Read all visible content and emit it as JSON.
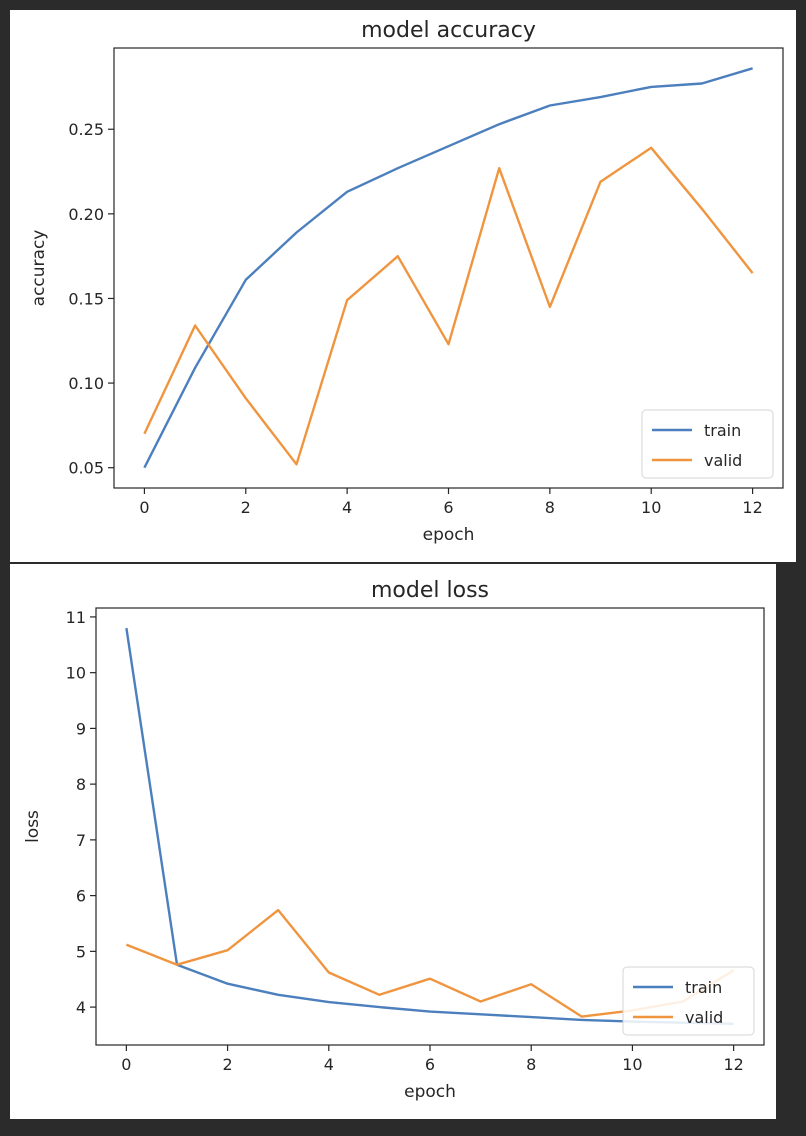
{
  "colors": {
    "train": "#4c7fbd",
    "valid": "#f0953f",
    "axis": "#262626",
    "background": "#2b2b2b"
  },
  "chart_data": [
    {
      "type": "line",
      "title": "model accuracy",
      "xlabel": "epoch",
      "ylabel": "accuracy",
      "x": [
        0,
        1,
        2,
        3,
        4,
        5,
        6,
        7,
        8,
        9,
        10,
        11,
        12
      ],
      "xlim": [
        -0.6,
        12.6
      ],
      "ylim": [
        0.038,
        0.298
      ],
      "xticks": [
        0,
        2,
        4,
        6,
        8,
        10,
        12
      ],
      "yticks": [
        0.05,
        0.1,
        0.15,
        0.2,
        0.25
      ],
      "ytick_labels": [
        "0.05",
        "0.10",
        "0.15",
        "0.20",
        "0.25"
      ],
      "legend": "lower right",
      "grid": false,
      "series": [
        {
          "name": "train",
          "color": "#4c7fbd",
          "values": [
            0.05,
            0.109,
            0.161,
            0.189,
            0.213,
            0.227,
            0.24,
            0.253,
            0.264,
            0.269,
            0.275,
            0.277,
            0.286
          ]
        },
        {
          "name": "valid",
          "color": "#f0953f",
          "values": [
            0.07,
            0.134,
            0.091,
            0.052,
            0.149,
            0.175,
            0.123,
            0.227,
            0.145,
            0.219,
            0.239,
            0.203,
            0.165
          ]
        }
      ]
    },
    {
      "type": "line",
      "title": "model loss",
      "xlabel": "epoch",
      "ylabel": "loss",
      "x": [
        0,
        1,
        2,
        3,
        4,
        5,
        6,
        7,
        8,
        9,
        10,
        11,
        12
      ],
      "xlim": [
        -0.6,
        12.6
      ],
      "ylim": [
        3.32,
        11.16
      ],
      "xticks": [
        0,
        2,
        4,
        6,
        8,
        10,
        12
      ],
      "yticks": [
        4,
        5,
        6,
        7,
        8,
        9,
        10,
        11
      ],
      "ytick_labels": [
        "4",
        "5",
        "6",
        "7",
        "8",
        "9",
        "10",
        "11"
      ],
      "legend": "lower right",
      "grid": false,
      "series": [
        {
          "name": "train",
          "color": "#4c7fbd",
          "values": [
            10.8,
            4.76,
            4.42,
            4.22,
            4.09,
            4.0,
            3.92,
            3.87,
            3.82,
            3.77,
            3.74,
            3.72,
            3.7
          ]
        },
        {
          "name": "valid",
          "color": "#f0953f",
          "values": [
            5.12,
            4.76,
            5.02,
            5.74,
            4.62,
            4.22,
            4.51,
            4.1,
            4.41,
            3.83,
            3.94,
            4.1,
            4.66
          ]
        }
      ]
    }
  ]
}
